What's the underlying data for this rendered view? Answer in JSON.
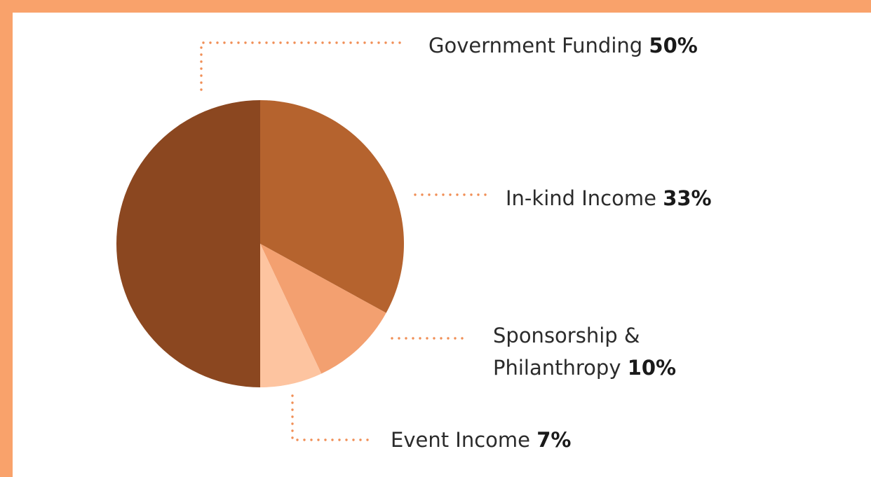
{
  "colors": {
    "frame": "#f9a26b",
    "leader": "#f08e55"
  },
  "chart_data": {
    "type": "pie",
    "title": "",
    "slices": [
      {
        "name": "In-kind Income",
        "label": "In-kind Income",
        "value": 33,
        "pct_label": "33%",
        "color": "#b5632e"
      },
      {
        "name": "Sponsorship & Philanthropy",
        "label_lines": [
          "Sponsorship &",
          "Philanthropy"
        ],
        "value": 10,
        "pct_label": "10%",
        "color": "#f3a070"
      },
      {
        "name": "Event Income",
        "label": "Event Income",
        "value": 7,
        "pct_label": "7%",
        "color": "#fdc4a0"
      },
      {
        "name": "Government Funding",
        "label": "Government Funding",
        "value": 50,
        "pct_label": "50%",
        "color": "#8b4720"
      }
    ]
  }
}
